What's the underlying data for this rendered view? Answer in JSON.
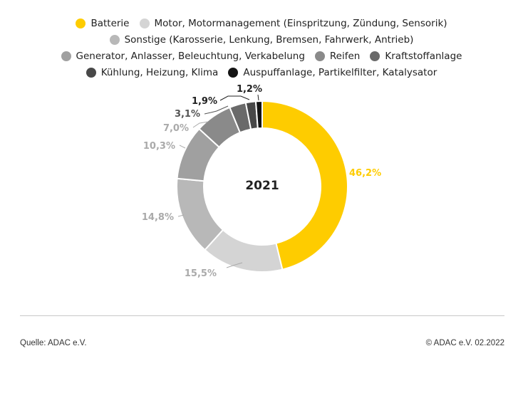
{
  "chart_data": {
    "type": "pie",
    "center_label": "2021",
    "legend_placement": "top",
    "categories": [
      "Batterie",
      "Motor, Motormanagement (Einspritzung, Zündung, Sensorik)",
      "Sonstige (Karosserie, Lenkung, Bremsen, Fahrwerk, Antrieb)",
      "Generator, Anlasser, Beleuchtung, Verkabelung",
      "Reifen",
      "Kraftstoffanlage",
      "Kühlung, Heizung, Klima",
      "Auspuffanlage, Partikelfilter, Katalysator"
    ],
    "values": [
      46.2,
      15.5,
      14.8,
      10.3,
      7.0,
      3.1,
      1.9,
      1.2
    ],
    "value_labels": [
      "46,2%",
      "15,5%",
      "14,8%",
      "10,3%",
      "7,0%",
      "3,1%",
      "1,9%",
      "1,2%"
    ],
    "colors": [
      "#fecc00",
      "#d4d4d4",
      "#b8b8b8",
      "#a0a0a0",
      "#8a8a8a",
      "#6a6a6a",
      "#484848",
      "#141414"
    ],
    "label_colors": [
      "#fecc00",
      "#aaaaaa",
      "#aaaaaa",
      "#aaaaaa",
      "#aaaaaa",
      "#555555",
      "#222222",
      "#222222"
    ]
  },
  "footer": {
    "source": "Quelle: ADAC e.V.",
    "copyright": "© ADAC e.V. 02.2022"
  }
}
